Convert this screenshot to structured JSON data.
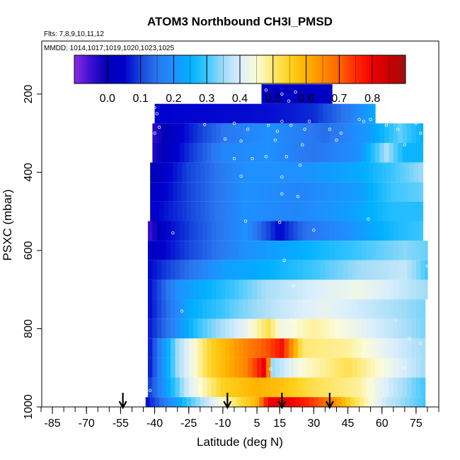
{
  "chart_data": {
    "type": "heatmap",
    "title": "ATOM3 Northbound CH3I_PMSD",
    "flights_label": "Flts: 7,8,9,10,11,12",
    "dates_label": "MMDD: 1014,1017,1019,1020,1023,1025",
    "xlabel": "Latitude (deg N)",
    "ylabel": "PSXC (mbar)",
    "xlim": [
      -90,
      85
    ],
    "ylim": [
      1000,
      50
    ],
    "x_ticks": [
      -85,
      -70,
      -55,
      -40,
      -25,
      -10,
      5,
      15,
      30,
      45,
      60,
      75
    ],
    "x_tick_labels": [
      "-85",
      "-70",
      "-55",
      "-40",
      "-25",
      "-10",
      "5",
      "15",
      "30",
      "45",
      "60",
      "75"
    ],
    "y_ticks": [
      200,
      400,
      600,
      800,
      1000
    ],
    "y_tick_labels": [
      "200",
      "400",
      "600",
      "800",
      "1000"
    ],
    "colorbar": {
      "min": -0.1,
      "max": 0.9,
      "ticks": [
        0.0,
        0.1,
        0.2,
        0.3,
        0.4,
        0.5,
        0.6,
        0.7,
        0.8
      ],
      "tick_labels": [
        "0.0",
        "0.1",
        "0.2",
        "0.3",
        "0.4",
        "0.5",
        "0.6",
        "0.7",
        "0.8"
      ]
    },
    "arrows_lat": [
      -54,
      -8,
      16,
      37
    ],
    "layers": [
      {
        "p": 200,
        "xmin": 7,
        "xmax": 38,
        "v": [
          [
            7,
            0.03
          ],
          [
            38,
            0.03
          ]
        ]
      },
      {
        "p": 250,
        "xmin": -40,
        "xmax": 57,
        "v": [
          [
            -40,
            0.05
          ],
          [
            10,
            0.06
          ],
          [
            30,
            0.08
          ],
          [
            45,
            0.16
          ],
          [
            57,
            0.24
          ]
        ]
      },
      {
        "p": 300,
        "xmin": -41,
        "xmax": 78,
        "v": [
          [
            -41,
            -0.04
          ],
          [
            -30,
            0.04
          ],
          [
            -10,
            0.15
          ],
          [
            10,
            0.2
          ],
          [
            35,
            0.14
          ],
          [
            55,
            0.22
          ],
          [
            68,
            0.32
          ],
          [
            78,
            0.25
          ]
        ]
      },
      {
        "p": 350,
        "xmin": -41,
        "xmax": 78,
        "v": [
          [
            -41,
            -0.03
          ],
          [
            -30,
            0.05
          ],
          [
            -10,
            0.18
          ],
          [
            10,
            0.2
          ],
          [
            30,
            0.15
          ],
          [
            50,
            0.2
          ],
          [
            62,
            0.36
          ],
          [
            70,
            0.26
          ],
          [
            78,
            0.26
          ]
        ]
      },
      {
        "p": 400,
        "xmin": -42,
        "xmax": 78,
        "v": [
          [
            -42,
            0.0
          ],
          [
            -25,
            0.1
          ],
          [
            0,
            0.2
          ],
          [
            25,
            0.2
          ],
          [
            50,
            0.24
          ],
          [
            65,
            0.3
          ],
          [
            78,
            0.35
          ]
        ]
      },
      {
        "p": 450,
        "xmin": -42,
        "xmax": 78,
        "v": [
          [
            -42,
            0.02
          ],
          [
            -25,
            0.1
          ],
          [
            0,
            0.2
          ],
          [
            25,
            0.18
          ],
          [
            50,
            0.22
          ],
          [
            65,
            0.3
          ],
          [
            78,
            0.32
          ]
        ]
      },
      {
        "p": 500,
        "xmin": -42,
        "xmax": 78,
        "v": [
          [
            -42,
            0.04
          ],
          [
            -25,
            0.1
          ],
          [
            0,
            0.2
          ],
          [
            20,
            0.18
          ],
          [
            45,
            0.22
          ],
          [
            65,
            0.28
          ],
          [
            78,
            0.28
          ]
        ]
      },
      {
        "p": 550,
        "xmin": -43,
        "xmax": 78,
        "v": [
          [
            -43,
            -0.06
          ],
          [
            -35,
            0.05
          ],
          [
            0,
            0.2
          ],
          [
            15,
            0.05
          ],
          [
            25,
            0.14
          ],
          [
            45,
            0.2
          ],
          [
            65,
            0.27
          ],
          [
            78,
            0.3
          ]
        ]
      },
      {
        "p": 600,
        "xmin": -43,
        "xmax": 80,
        "v": [
          [
            -43,
            0.02
          ],
          [
            -25,
            0.1
          ],
          [
            0,
            0.2
          ],
          [
            25,
            0.25
          ],
          [
            50,
            0.3
          ],
          [
            70,
            0.34
          ],
          [
            80,
            0.32
          ]
        ]
      },
      {
        "p": 650,
        "xmin": -43,
        "xmax": 80,
        "v": [
          [
            -43,
            0.05
          ],
          [
            -30,
            0.12
          ],
          [
            -10,
            0.22
          ],
          [
            10,
            0.25
          ],
          [
            30,
            0.3
          ],
          [
            50,
            0.35
          ],
          [
            70,
            0.38
          ],
          [
            80,
            0.3
          ]
        ]
      },
      {
        "p": 700,
        "xmin": -43,
        "xmax": 80,
        "v": [
          [
            -43,
            0.05
          ],
          [
            -30,
            0.2
          ],
          [
            -10,
            0.28
          ],
          [
            10,
            0.36
          ],
          [
            30,
            0.4
          ],
          [
            50,
            0.43
          ],
          [
            70,
            0.38
          ],
          [
            80,
            0.35
          ]
        ]
      },
      {
        "p": 750,
        "xmin": -43,
        "xmax": 79,
        "v": [
          [
            -43,
            0.05
          ],
          [
            -25,
            0.24
          ],
          [
            -5,
            0.32
          ],
          [
            15,
            0.38
          ],
          [
            35,
            0.42
          ],
          [
            55,
            0.38
          ],
          [
            79,
            0.33
          ]
        ]
      },
      {
        "p": 800,
        "xmin": -43,
        "xmax": 79,
        "v": [
          [
            -43,
            0.06
          ],
          [
            -20,
            0.3
          ],
          [
            0,
            0.42
          ],
          [
            10,
            0.52
          ],
          [
            16,
            0.43
          ],
          [
            30,
            0.48
          ],
          [
            50,
            0.42
          ],
          [
            79,
            0.33
          ]
        ]
      },
      {
        "p": 850,
        "xmin": -43,
        "xmax": 79,
        "v": [
          [
            -43,
            0.05
          ],
          [
            -30,
            0.35
          ],
          [
            -15,
            0.55
          ],
          [
            0,
            0.66
          ],
          [
            10,
            0.72
          ],
          [
            16,
            0.78
          ],
          [
            25,
            0.5
          ],
          [
            45,
            0.48
          ],
          [
            65,
            0.4
          ],
          [
            79,
            0.35
          ]
        ]
      },
      {
        "p": 900,
        "xmin": -43,
        "xmax": 79,
        "v": [
          [
            -43,
            0.05
          ],
          [
            -30,
            0.35
          ],
          [
            -15,
            0.55
          ],
          [
            0,
            0.66
          ],
          [
            9,
            0.82
          ],
          [
            12,
            0.35
          ],
          [
            25,
            0.45
          ],
          [
            45,
            0.52
          ],
          [
            65,
            0.42
          ],
          [
            79,
            0.35
          ]
        ]
      },
      {
        "p": 950,
        "xmin": -43,
        "xmax": 79,
        "v": [
          [
            -43,
            0.08
          ],
          [
            -25,
            0.4
          ],
          [
            -10,
            0.55
          ],
          [
            5,
            0.6
          ],
          [
            15,
            0.58
          ],
          [
            30,
            0.52
          ],
          [
            50,
            0.48
          ],
          [
            65,
            0.38
          ],
          [
            79,
            0.3
          ]
        ]
      },
      {
        "p": 1000,
        "xmin": -44,
        "xmax": 79,
        "v": [
          [
            -44,
            0.05
          ],
          [
            -25,
            0.3
          ],
          [
            -10,
            0.45
          ],
          [
            5,
            0.6
          ],
          [
            10,
            0.8
          ],
          [
            16,
            0.82
          ],
          [
            28,
            0.75
          ],
          [
            38,
            0.66
          ],
          [
            48,
            0.52
          ],
          [
            62,
            0.38
          ],
          [
            79,
            0.3
          ]
        ]
      }
    ],
    "obs_points": [
      [
        -40,
        235
      ],
      [
        -39,
        250
      ],
      [
        9,
        190
      ],
      [
        16,
        200
      ],
      [
        22,
        195
      ],
      [
        39,
        190
      ],
      [
        19,
        218
      ],
      [
        -38,
        285
      ],
      [
        -40,
        300
      ],
      [
        -18,
        278
      ],
      [
        -5,
        275
      ],
      [
        1,
        290
      ],
      [
        10,
        280
      ],
      [
        16,
        270
      ],
      [
        14,
        295
      ],
      [
        20,
        280
      ],
      [
        26,
        290
      ],
      [
        28,
        270
      ],
      [
        37,
        290
      ],
      [
        42,
        300
      ],
      [
        50,
        265
      ],
      [
        52,
        270
      ],
      [
        55,
        265
      ],
      [
        62,
        280
      ],
      [
        67,
        290
      ],
      [
        75,
        275
      ],
      [
        77,
        300
      ],
      [
        -9,
        315
      ],
      [
        -2,
        320
      ],
      [
        13,
        318
      ],
      [
        25,
        330
      ],
      [
        40,
        318
      ],
      [
        70,
        330
      ],
      [
        -5,
        365
      ],
      [
        3,
        365
      ],
      [
        9,
        360
      ],
      [
        18,
        360
      ],
      [
        24,
        382
      ],
      [
        16,
        412
      ],
      [
        -2,
        410
      ],
      [
        16,
        455
      ],
      [
        23,
        462
      ],
      [
        -32,
        555
      ],
      [
        0,
        525
      ],
      [
        15,
        528
      ],
      [
        30,
        548
      ],
      [
        54,
        520
      ],
      [
        17,
        625
      ],
      [
        80,
        640
      ],
      [
        21,
        690
      ],
      [
        -28,
        755
      ],
      [
        20,
        778
      ],
      [
        66,
        778
      ],
      [
        72,
        825
      ],
      [
        77,
        838
      ],
      [
        70,
        900
      ],
      [
        11,
        903
      ],
      [
        -42,
        958
      ]
    ]
  }
}
